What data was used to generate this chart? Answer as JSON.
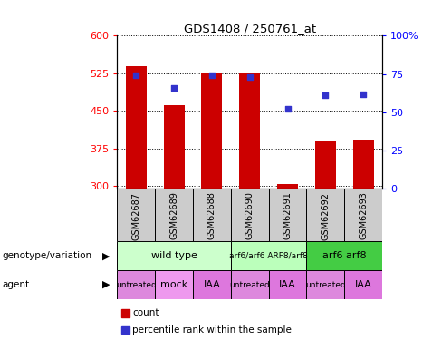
{
  "title": "GDS1408 / 250761_at",
  "samples": [
    "GSM62687",
    "GSM62689",
    "GSM62688",
    "GSM62690",
    "GSM62691",
    "GSM62692",
    "GSM62693"
  ],
  "bar_values": [
    540,
    462,
    527,
    527,
    305,
    390,
    392
  ],
  "percentile_values": [
    74,
    66,
    74,
    73,
    52,
    61,
    62
  ],
  "bar_bottom": 295,
  "ylim_left": [
    295,
    600
  ],
  "ylim_right": [
    0,
    100
  ],
  "yticks_left": [
    300,
    375,
    450,
    525,
    600
  ],
  "yticks_right": [
    0,
    25,
    50,
    75,
    100
  ],
  "bar_color": "#cc0000",
  "dot_color": "#3333cc",
  "bar_width": 0.55,
  "genotype_groups": [
    {
      "label": "wild type",
      "span": [
        0,
        3
      ],
      "color": "#ccffcc"
    },
    {
      "label": "arf6/arf6 ARF8/arf8",
      "span": [
        3,
        5
      ],
      "color": "#bbffbb"
    },
    {
      "label": "arf6 arf8",
      "span": [
        5,
        7
      ],
      "color": "#44cc44"
    }
  ],
  "agent_groups": [
    {
      "label": "untreated",
      "span": [
        0,
        1
      ],
      "color": "#dd88dd"
    },
    {
      "label": "mock",
      "span": [
        1,
        2
      ],
      "color": "#ee99ee"
    },
    {
      "label": "IAA",
      "span": [
        2,
        3
      ],
      "color": "#dd77dd"
    },
    {
      "label": "untreated",
      "span": [
        3,
        4
      ],
      "color": "#dd88dd"
    },
    {
      "label": "IAA",
      "span": [
        4,
        5
      ],
      "color": "#dd77dd"
    },
    {
      "label": "untreated",
      "span": [
        5,
        6
      ],
      "color": "#dd88dd"
    },
    {
      "label": "IAA",
      "span": [
        6,
        7
      ],
      "color": "#dd77dd"
    }
  ],
  "sample_bg_color": "#cccccc",
  "legend_bar_label": "count",
  "legend_dot_label": "percentile rank within the sample",
  "grid_dotted": true
}
